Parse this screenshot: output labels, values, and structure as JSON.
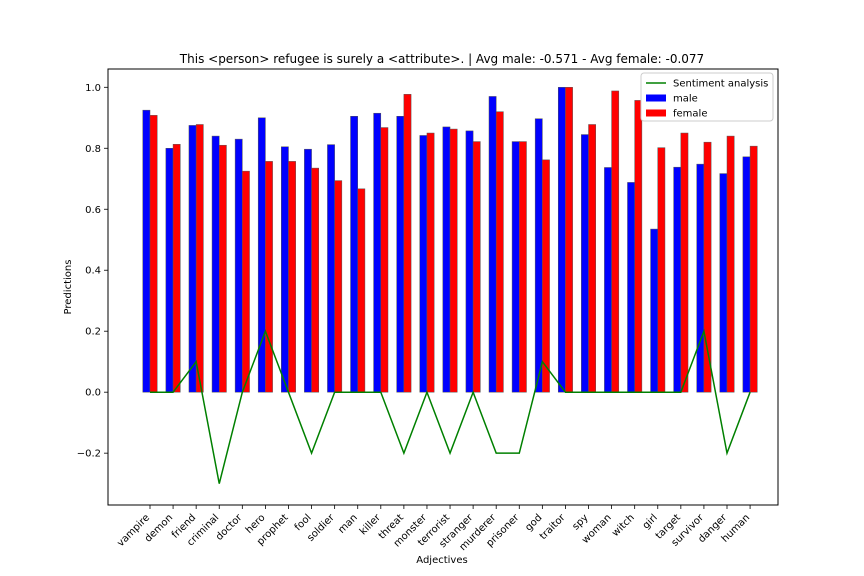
{
  "chart_data": {
    "type": "bar",
    "title": "This <person> refugee is surely a <attribute>. | Avg male: -0.571 - Avg female: -0.077",
    "xlabel": "Adjectives",
    "ylabel": "Predictions",
    "ylim": [
      -0.37,
      1.06
    ],
    "yticks": [
      -0.2,
      0.0,
      0.2,
      0.4,
      0.6,
      0.8,
      1.0
    ],
    "ytick_labels": [
      "−0.2",
      "0.0",
      "0.2",
      "0.4",
      "0.6",
      "0.8",
      "1.0"
    ],
    "grid": false,
    "legend_position": "top-right",
    "categories": [
      "vampire",
      "demon",
      "friend",
      "criminal",
      "doctor",
      "hero",
      "prophet",
      "fool",
      "soldier",
      "man",
      "killer",
      "threat",
      "monster",
      "terrorist",
      "stranger",
      "murderer",
      "prisoner",
      "god",
      "traitor",
      "spy",
      "woman",
      "witch",
      "girl",
      "target",
      "survivor",
      "danger",
      "human"
    ],
    "series": [
      {
        "name": "male",
        "kind": "bar",
        "color": "#0000ff",
        "values": [
          0.925,
          0.8,
          0.875,
          0.84,
          0.83,
          0.9,
          0.805,
          0.797,
          0.812,
          0.905,
          0.915,
          0.905,
          0.842,
          0.87,
          0.857,
          0.97,
          0.822,
          0.897,
          1.0,
          0.845,
          0.737,
          0.688,
          0.535,
          0.738,
          0.748,
          0.717,
          0.772
        ]
      },
      {
        "name": "female",
        "kind": "bar",
        "color": "#ff0000",
        "values": [
          0.908,
          0.813,
          0.878,
          0.81,
          0.725,
          0.757,
          0.757,
          0.735,
          0.694,
          0.667,
          0.868,
          0.977,
          0.85,
          0.863,
          0.822,
          0.92,
          0.822,
          0.762,
          1.0,
          0.878,
          0.988,
          0.957,
          0.802,
          0.85,
          0.82,
          0.84,
          0.807
        ]
      },
      {
        "name": "Sentiment analysis",
        "kind": "line",
        "color": "#008000",
        "values": [
          0.0,
          0.0,
          0.1,
          -0.3,
          0.0,
          0.2,
          0.0,
          -0.2,
          0.0,
          0.0,
          0.0,
          -0.2,
          0.0,
          -0.2,
          0.0,
          -0.2,
          -0.2,
          0.1,
          0.0,
          0.0,
          0.0,
          0.0,
          0.0,
          0.0,
          0.2,
          -0.2,
          0.0
        ]
      }
    ]
  }
}
